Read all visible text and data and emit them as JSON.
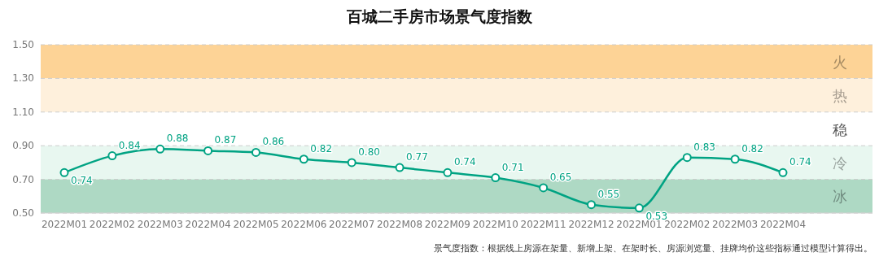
{
  "chart_data": {
    "type": "line",
    "title": "百城二手房市场景气度指数",
    "categories": [
      "2022M01",
      "2022M02",
      "2022M03",
      "2022M04",
      "2022M05",
      "2022M06",
      "2022M07",
      "2022M08",
      "2022M09",
      "2022M10",
      "2022M11",
      "2022M12",
      "2022M01",
      "2022M02",
      "2022M03",
      "2022M04"
    ],
    "series": [
      {
        "color": "#00a383",
        "values": [
          0.74,
          0.84,
          0.88,
          0.87,
          0.86,
          0.82,
          0.8,
          0.77,
          0.74,
          0.71,
          0.65,
          0.55,
          0.53,
          0.83,
          0.82,
          0.74
        ],
        "value_labels": [
          "0.74",
          "0.84",
          "0.88",
          "0.87",
          "0.86",
          "0.82",
          "0.80",
          "0.77",
          "0.74",
          "0.71",
          "0.65",
          "0.55",
          "0.53",
          "0.83",
          "0.82",
          "0.74"
        ]
      }
    ],
    "ylim": [
      0.5,
      1.5
    ],
    "yticks": [
      {
        "value": 0.5,
        "label": "0.50"
      },
      {
        "value": 0.7,
        "label": "0.70"
      },
      {
        "value": 0.9,
        "label": "0.90"
      },
      {
        "value": 1.1,
        "label": "1.10"
      },
      {
        "value": 1.3,
        "label": "1.30"
      },
      {
        "value": 1.5,
        "label": "1.50"
      }
    ],
    "bands": [
      {
        "axis": "y",
        "from": 1.3,
        "to": 1.5,
        "label": "火",
        "color": "#fdd396"
      },
      {
        "axis": "y",
        "from": 1.1,
        "to": 1.3,
        "label": "热",
        "color": "#fef0dc"
      },
      {
        "axis": "y",
        "from": 0.7,
        "to": 0.9,
        "label": "冷",
        "color": "#e8f7f0"
      },
      {
        "axis": "y",
        "from": 0.5,
        "to": 0.7,
        "label": "冰",
        "color": "#aed9c4"
      }
    ],
    "grid": "y",
    "marker": "circle",
    "line_style": "solid",
    "annotations": [
      "稳",
      "景气度指数：根据线上房源在架量、新增上架、在架时长、房源浏览量、挂牌均价这些指标通过模型计算得出。"
    ]
  }
}
